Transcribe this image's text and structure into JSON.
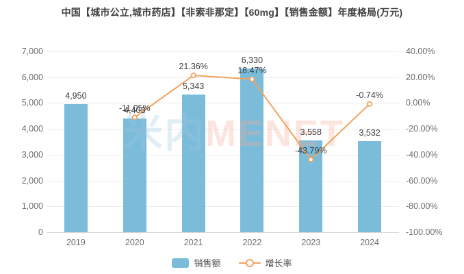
{
  "title": "中国【城市公立,城市药店】【非索非那定】【60mg】【销售金额】年度格局(万元)",
  "watermark": {
    "cn": "米内",
    "en": "MENET"
  },
  "legend": [
    {
      "label": "销售额",
      "symbol": "bar-swatch"
    },
    {
      "label": "增长率",
      "symbol": "line-ring"
    }
  ],
  "colors": {
    "bar": "#7abcda",
    "line": "#f0a45f",
    "marker_fill": "#ffffff",
    "title_text": "#3f3f3f",
    "axis_label": "#6e6e6e",
    "data_label": "#3d3d3d",
    "gridline": "#ececec",
    "axis_line": "#d8d8d8"
  },
  "chart_data": {
    "type": "bar",
    "subtype": "bar-line-combo",
    "title": "中国【城市公立,城市药店】【非索非那定】【60mg】【销售金额】年度格局(万元)",
    "categories": [
      "2019",
      "2020",
      "2021",
      "2022",
      "2023",
      "2024"
    ],
    "series": [
      {
        "name": "销售额",
        "type": "bar",
        "axis": "left",
        "values": [
          4950,
          4403,
          5343,
          6330,
          3558,
          3532
        ],
        "labels": [
          "4,950",
          "4,403",
          "5,343",
          "6,330",
          "3,558",
          "3,532"
        ]
      },
      {
        "name": "增长率",
        "type": "line",
        "axis": "right",
        "values": [
          null,
          -11.05,
          21.36,
          18.47,
          -43.79,
          -0.74
        ],
        "labels": [
          null,
          "-11.05%",
          "21.36%",
          "18.47%",
          "-43.79%",
          "-0.74%"
        ]
      }
    ],
    "left_axis": {
      "min": 0,
      "max": 7000,
      "tick_step": 1000,
      "ticks_bottom_to_top": [
        "0",
        "1,000",
        "2,000",
        "3,000",
        "4,000",
        "5,000",
        "6,000",
        "7,000"
      ],
      "unit": "万元"
    },
    "right_axis": {
      "min": -100,
      "max": 40,
      "tick_step": 20,
      "ticks_top_to_bottom": [
        "40.00%",
        "20.00%",
        "0.00%",
        "-20.00%",
        "-40.00%",
        "-60.00%",
        "-80.00%",
        "-100.00%"
      ]
    },
    "grid": true,
    "legend_position": "bottom"
  }
}
